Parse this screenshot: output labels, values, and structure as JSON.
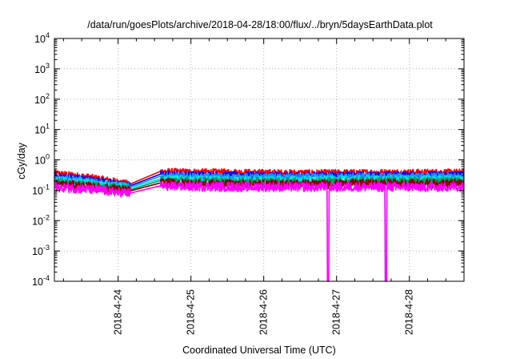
{
  "chart_data": {
    "type": "line",
    "title": "/data/run/goesPlots/archive/2018-04-28/18:00/flux/../bryn/5daysEarthData.plot",
    "xlabel": "Coordinated Universal Time (UTC)",
    "ylabel": "cGy/day",
    "y_scale": "log",
    "ylim": [
      0.0001,
      10000
    ],
    "y_ticks": [
      {
        "value": 0.0001,
        "base": "10",
        "exp": "-4"
      },
      {
        "value": 0.001,
        "base": "10",
        "exp": "-3"
      },
      {
        "value": 0.01,
        "base": "10",
        "exp": "-2"
      },
      {
        "value": 0.1,
        "base": "10",
        "exp": "-1"
      },
      {
        "value": 1,
        "base": "10",
        "exp": "0"
      },
      {
        "value": 10,
        "base": "10",
        "exp": "1"
      },
      {
        "value": 100,
        "base": "10",
        "exp": "2"
      },
      {
        "value": 1000,
        "base": "10",
        "exp": "3"
      },
      {
        "value": 10000,
        "base": "10",
        "exp": "4"
      }
    ],
    "xlim": [
      "2018-04-23 03:00",
      "2018-04-28 18:00"
    ],
    "x_ticks": [
      {
        "date": "2018-04-24 00:00",
        "label": "2018-4-24"
      },
      {
        "date": "2018-04-25 00:00",
        "label": "2018-4-25"
      },
      {
        "date": "2018-04-26 00:00",
        "label": "2018-4-26"
      },
      {
        "date": "2018-04-27 00:00",
        "label": "2018-4-27"
      },
      {
        "date": "2018-04-28 00:00",
        "label": "2018-4-28"
      }
    ],
    "grid": true,
    "data_gap": [
      "2018-04-24 04:00",
      "2018-04-24 14:00"
    ],
    "dropouts": [
      {
        "series": "magenta",
        "start": "2018-04-26 21:00",
        "end": "2018-04-26 21:30"
      },
      {
        "series": "magenta",
        "start": "2018-04-27 16:00",
        "end": "2018-04-27 16:30"
      },
      {
        "series": "cyan",
        "start": "2018-04-27 16:00",
        "end": "2018-04-27 16:30"
      }
    ],
    "series": [
      {
        "color": "#ff0000",
        "x": [
          "2018-04-23 03:00",
          "2018-04-24 04:00",
          "2018-04-24 14:00",
          "2018-04-25 12:00",
          "2018-04-26 12:00",
          "2018-04-27 12:00",
          "2018-04-28 18:00"
        ],
        "y": [
          0.37,
          0.16,
          0.42,
          0.4,
          0.38,
          0.39,
          0.4
        ]
      },
      {
        "color": "#0000ff",
        "x": [
          "2018-04-23 03:00",
          "2018-04-24 04:00",
          "2018-04-24 14:00",
          "2018-04-25 12:00",
          "2018-04-26 12:00",
          "2018-04-27 12:00",
          "2018-04-28 18:00"
        ],
        "y": [
          0.3,
          0.14,
          0.34,
          0.32,
          0.31,
          0.32,
          0.33
        ]
      },
      {
        "color": "#1e90ff",
        "x": [
          "2018-04-23 03:00",
          "2018-04-24 04:00",
          "2018-04-24 14:00",
          "2018-04-25 12:00",
          "2018-04-26 12:00",
          "2018-04-27 12:00",
          "2018-04-28 18:00"
        ],
        "y": [
          0.26,
          0.13,
          0.29,
          0.27,
          0.27,
          0.28,
          0.28
        ]
      },
      {
        "color": "#00e5e5",
        "x": [
          "2018-04-23 03:00",
          "2018-04-24 04:00",
          "2018-04-24 14:00",
          "2018-04-25 12:00",
          "2018-04-26 12:00",
          "2018-04-27 12:00",
          "2018-04-28 18:00"
        ],
        "y": [
          0.22,
          0.12,
          0.24,
          0.22,
          0.22,
          0.23,
          0.23
        ]
      },
      {
        "color": "#00a060",
        "x": [
          "2018-04-23 03:00",
          "2018-04-24 04:00",
          "2018-04-24 14:00",
          "2018-04-25 12:00",
          "2018-04-26 12:00",
          "2018-04-27 12:00",
          "2018-04-28 18:00"
        ],
        "y": [
          0.19,
          0.105,
          0.21,
          0.19,
          0.19,
          0.2,
          0.2
        ]
      },
      {
        "color": "#8b0000",
        "x": [
          "2018-04-23 03:00",
          "2018-04-24 04:00",
          "2018-04-24 14:00",
          "2018-04-25 12:00",
          "2018-04-26 12:00",
          "2018-04-27 12:00",
          "2018-04-28 18:00"
        ],
        "y": [
          0.16,
          0.095,
          0.175,
          0.16,
          0.16,
          0.165,
          0.165
        ]
      },
      {
        "color": "#ff00ff",
        "x": [
          "2018-04-23 03:00",
          "2018-04-24 04:00",
          "2018-04-24 14:00",
          "2018-04-25 12:00",
          "2018-04-26 12:00",
          "2018-04-27 12:00",
          "2018-04-28 18:00"
        ],
        "y": [
          0.13,
          0.08,
          0.14,
          0.13,
          0.13,
          0.13,
          0.13
        ]
      }
    ]
  }
}
